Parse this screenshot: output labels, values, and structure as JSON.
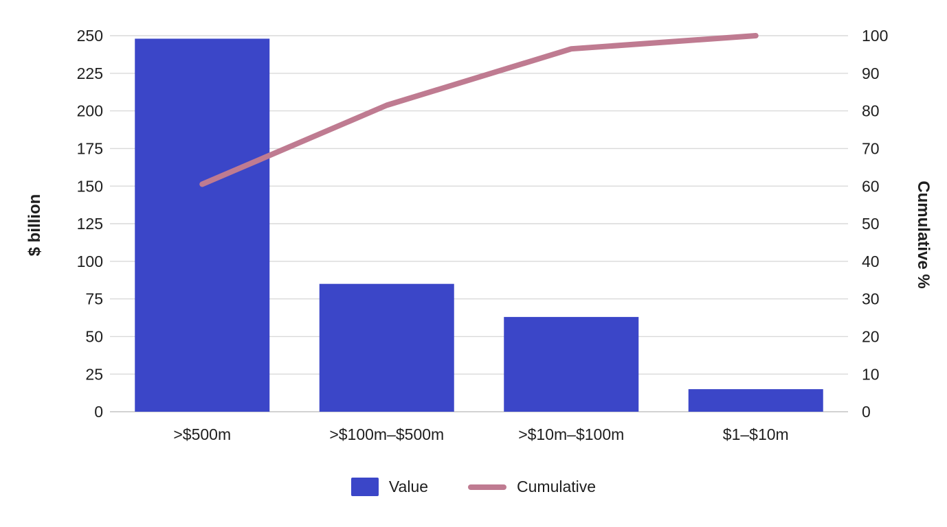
{
  "chart_data": {
    "type": "bar",
    "subtype": "pareto (bar + cumulative line)",
    "title": "",
    "categories": [
      ">$500m",
      ">$100m–$500m",
      ">$10m–$100m",
      "$1–$10m"
    ],
    "series": [
      {
        "name": "Value",
        "type": "bar",
        "axis": "left",
        "values": [
          248,
          85,
          63,
          15
        ],
        "color": "#3b46c8"
      },
      {
        "name": "Cumulative",
        "type": "line",
        "axis": "right",
        "values": [
          60.5,
          81.5,
          96.5,
          100
        ],
        "color": "#bf7b91"
      }
    ],
    "ylabel_left": "$ billion",
    "ylabel_right": "Cumulative %",
    "ylim_left": [
      0,
      250
    ],
    "ylim_right": [
      0,
      100
    ],
    "left_ticks": [
      "0",
      "25",
      "50",
      "75",
      "100",
      "125",
      "150",
      "175",
      "200",
      "225",
      "250"
    ],
    "right_ticks": [
      "0",
      "10",
      "20",
      "30",
      "40",
      "50",
      "60",
      "70",
      "80",
      "90",
      "100"
    ],
    "grid": true,
    "legend_position": "bottom",
    "colors": {
      "bar": "#3b46c8",
      "line": "#bf7b91",
      "gridline": "#d9d9d9",
      "axis_baseline": "#d2d2d2",
      "text": "#1e1e1e"
    }
  }
}
